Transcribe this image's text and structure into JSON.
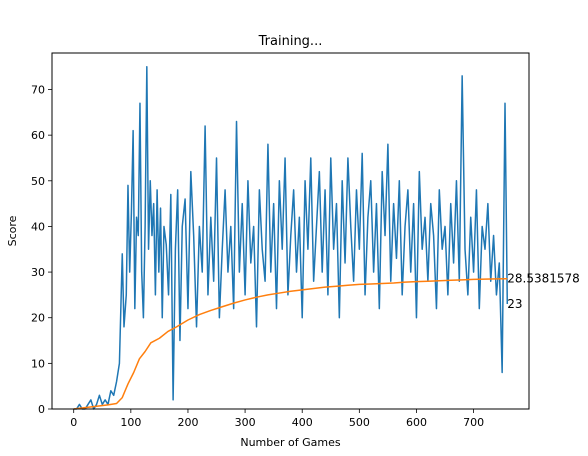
{
  "chart_data": {
    "type": "line",
    "title": "Training...",
    "xlabel": "Number of Games",
    "ylabel": "Score",
    "xlim": [
      -38,
      797
    ],
    "ylim": [
      0,
      78
    ],
    "xticks": [
      0,
      100,
      200,
      300,
      400,
      500,
      600,
      700
    ],
    "yticks": [
      0,
      10,
      20,
      30,
      40,
      50,
      60,
      70
    ],
    "grid": false,
    "legend": "none",
    "series": [
      {
        "color": "#1f77b4",
        "points": [
          [
            0,
            0
          ],
          [
            5,
            0
          ],
          [
            10,
            1
          ],
          [
            15,
            0
          ],
          [
            20,
            0
          ],
          [
            25,
            1
          ],
          [
            30,
            2
          ],
          [
            35,
            0
          ],
          [
            40,
            1
          ],
          [
            45,
            3
          ],
          [
            50,
            1
          ],
          [
            55,
            2
          ],
          [
            60,
            1
          ],
          [
            65,
            4
          ],
          [
            70,
            3
          ],
          [
            75,
            6
          ],
          [
            80,
            10
          ],
          [
            85,
            34
          ],
          [
            88,
            18
          ],
          [
            92,
            25
          ],
          [
            95,
            49
          ],
          [
            98,
            30
          ],
          [
            101,
            43
          ],
          [
            104,
            61
          ],
          [
            107,
            22
          ],
          [
            110,
            42
          ],
          [
            113,
            38
          ],
          [
            116,
            67
          ],
          [
            119,
            30
          ],
          [
            122,
            20
          ],
          [
            125,
            40
          ],
          [
            128,
            75
          ],
          [
            131,
            35
          ],
          [
            134,
            50
          ],
          [
            137,
            38
          ],
          [
            140,
            45
          ],
          [
            143,
            25
          ],
          [
            146,
            48
          ],
          [
            149,
            30
          ],
          [
            152,
            44
          ],
          [
            155,
            20
          ],
          [
            158,
            40
          ],
          [
            162,
            36
          ],
          [
            166,
            25
          ],
          [
            170,
            47
          ],
          [
            174,
            2
          ],
          [
            178,
            35
          ],
          [
            182,
            48
          ],
          [
            186,
            15
          ],
          [
            190,
            40
          ],
          [
            195,
            46
          ],
          [
            200,
            22
          ],
          [
            205,
            52
          ],
          [
            210,
            38
          ],
          [
            215,
            18
          ],
          [
            220,
            40
          ],
          [
            225,
            30
          ],
          [
            230,
            62
          ],
          [
            235,
            25
          ],
          [
            240,
            42
          ],
          [
            245,
            28
          ],
          [
            250,
            55
          ],
          [
            255,
            20
          ],
          [
            260,
            35
          ],
          [
            265,
            48
          ],
          [
            270,
            30
          ],
          [
            275,
            40
          ],
          [
            280,
            22
          ],
          [
            285,
            63
          ],
          [
            290,
            30
          ],
          [
            295,
            45
          ],
          [
            300,
            25
          ],
          [
            305,
            50
          ],
          [
            310,
            32
          ],
          [
            315,
            40
          ],
          [
            320,
            18
          ],
          [
            325,
            48
          ],
          [
            330,
            35
          ],
          [
            335,
            28
          ],
          [
            340,
            58
          ],
          [
            345,
            30
          ],
          [
            350,
            45
          ],
          [
            355,
            22
          ],
          [
            360,
            50
          ],
          [
            365,
            35
          ],
          [
            370,
            55
          ],
          [
            375,
            25
          ],
          [
            380,
            38
          ],
          [
            385,
            48
          ],
          [
            390,
            30
          ],
          [
            395,
            42
          ],
          [
            400,
            20
          ],
          [
            405,
            50
          ],
          [
            410,
            35
          ],
          [
            415,
            55
          ],
          [
            420,
            28
          ],
          [
            425,
            40
          ],
          [
            430,
            52
          ],
          [
            435,
            30
          ],
          [
            440,
            48
          ],
          [
            445,
            25
          ],
          [
            450,
            55
          ],
          [
            455,
            35
          ],
          [
            460,
            45
          ],
          [
            465,
            20
          ],
          [
            470,
            50
          ],
          [
            475,
            32
          ],
          [
            480,
            55
          ],
          [
            485,
            40
          ],
          [
            490,
            28
          ],
          [
            495,
            48
          ],
          [
            500,
            35
          ],
          [
            505,
            56
          ],
          [
            510,
            25
          ],
          [
            515,
            42
          ],
          [
            520,
            50
          ],
          [
            525,
            30
          ],
          [
            530,
            45
          ],
          [
            535,
            22
          ],
          [
            540,
            52
          ],
          [
            545,
            38
          ],
          [
            550,
            58
          ],
          [
            555,
            28
          ],
          [
            560,
            45
          ],
          [
            565,
            33
          ],
          [
            570,
            50
          ],
          [
            575,
            25
          ],
          [
            580,
            40
          ],
          [
            585,
            48
          ],
          [
            590,
            30
          ],
          [
            595,
            45
          ],
          [
            600,
            20
          ],
          [
            605,
            52
          ],
          [
            610,
            35
          ],
          [
            615,
            42
          ],
          [
            620,
            28
          ],
          [
            625,
            45
          ],
          [
            630,
            38
          ],
          [
            635,
            22
          ],
          [
            640,
            48
          ],
          [
            645,
            35
          ],
          [
            650,
            40
          ],
          [
            655,
            25
          ],
          [
            660,
            45
          ],
          [
            665,
            32
          ],
          [
            670,
            50
          ],
          [
            675,
            28
          ],
          [
            680,
            73
          ],
          [
            685,
            35
          ],
          [
            690,
            25
          ],
          [
            695,
            42
          ],
          [
            700,
            30
          ],
          [
            705,
            48
          ],
          [
            710,
            22
          ],
          [
            715,
            40
          ],
          [
            720,
            35
          ],
          [
            725,
            45
          ],
          [
            730,
            28
          ],
          [
            735,
            38
          ],
          [
            740,
            25
          ],
          [
            745,
            32
          ],
          [
            750,
            8
          ],
          [
            755,
            67
          ],
          [
            759,
            23
          ]
        ]
      },
      {
        "color": "#ff7f0e",
        "points": [
          [
            0,
            0
          ],
          [
            20,
            0.3
          ],
          [
            40,
            0.6
          ],
          [
            60,
            0.9
          ],
          [
            75,
            1.2
          ],
          [
            85,
            2.5
          ],
          [
            95,
            5.5
          ],
          [
            105,
            8
          ],
          [
            115,
            11
          ],
          [
            125,
            12.6
          ],
          [
            135,
            14.5
          ],
          [
            150,
            15.5
          ],
          [
            165,
            17
          ],
          [
            180,
            18
          ],
          [
            200,
            19.5
          ],
          [
            220,
            20.7
          ],
          [
            240,
            21.6
          ],
          [
            260,
            22.4
          ],
          [
            280,
            23.2
          ],
          [
            300,
            23.9
          ],
          [
            320,
            24.5
          ],
          [
            340,
            25
          ],
          [
            360,
            25.4
          ],
          [
            380,
            25.8
          ],
          [
            400,
            26.1
          ],
          [
            420,
            26.4
          ],
          [
            440,
            26.7
          ],
          [
            460,
            26.9
          ],
          [
            480,
            27.1
          ],
          [
            500,
            27.3
          ],
          [
            520,
            27.4
          ],
          [
            540,
            27.5
          ],
          [
            560,
            27.6
          ],
          [
            580,
            27.8
          ],
          [
            600,
            27.9
          ],
          [
            620,
            28
          ],
          [
            640,
            28.1
          ],
          [
            660,
            28.2
          ],
          [
            680,
            28.3
          ],
          [
            700,
            28.4
          ],
          [
            720,
            28.45
          ],
          [
            740,
            28.5
          ],
          [
            759,
            28.54
          ]
        ]
      }
    ],
    "annotations": [
      {
        "text": "28.5381578",
        "x": 759,
        "y": 28.5381578
      },
      {
        "text": "23",
        "x": 759,
        "y": 23
      }
    ]
  }
}
